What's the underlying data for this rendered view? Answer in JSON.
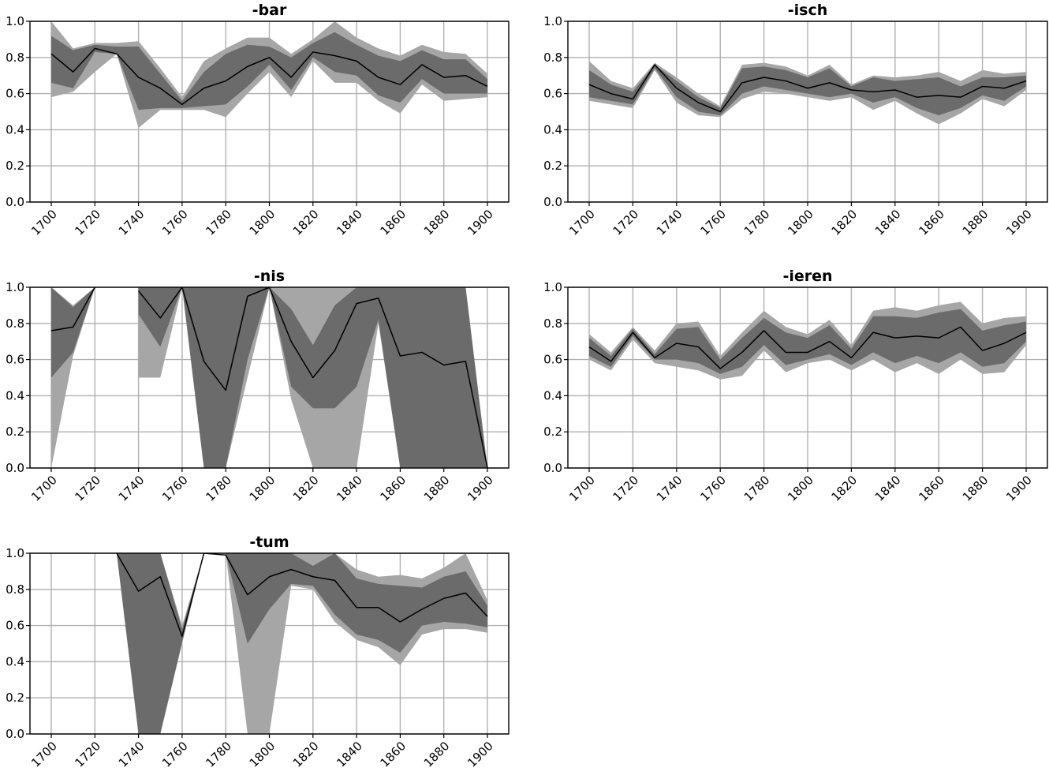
{
  "colors": {
    "outer_band": "#a6a6a6",
    "inner_band": "#6b6b6b",
    "mean_line": "#000000",
    "grid": "#b0b0b0"
  },
  "chart_data": [
    {
      "type": "area",
      "title": "-bar",
      "x": [
        1700,
        1710,
        1720,
        1730,
        1740,
        1750,
        1760,
        1770,
        1780,
        1790,
        1800,
        1810,
        1820,
        1830,
        1840,
        1850,
        1860,
        1870,
        1880,
        1890,
        1900
      ],
      "x_ticks": [
        1700,
        1720,
        1740,
        1760,
        1780,
        1800,
        1820,
        1840,
        1860,
        1880,
        1900
      ],
      "ylim": [
        0,
        1.0
      ],
      "y_ticks": [
        "0.0",
        "0.2",
        "0.4",
        "0.6",
        "0.8",
        "1.0"
      ],
      "grid": true,
      "series": [
        {
          "role": "outer-band",
          "lower": [
            0.58,
            0.61,
            0.72,
            0.82,
            0.41,
            0.51,
            0.51,
            0.51,
            0.47,
            0.6,
            0.72,
            0.58,
            0.78,
            0.66,
            0.66,
            0.56,
            0.49,
            0.65,
            0.56,
            0.57,
            0.58
          ],
          "upper": [
            1.0,
            0.85,
            0.88,
            0.88,
            0.89,
            0.74,
            0.58,
            0.78,
            0.85,
            0.91,
            0.91,
            0.82,
            0.9,
            1.0,
            0.91,
            0.85,
            0.81,
            0.87,
            0.83,
            0.82,
            0.71
          ]
        },
        {
          "role": "inner-band",
          "lower": [
            0.66,
            0.63,
            0.83,
            0.82,
            0.51,
            0.52,
            0.52,
            0.53,
            0.54,
            0.64,
            0.76,
            0.62,
            0.8,
            0.72,
            0.7,
            0.59,
            0.55,
            0.68,
            0.6,
            0.6,
            0.6
          ],
          "upper": [
            0.92,
            0.84,
            0.87,
            0.86,
            0.86,
            0.71,
            0.56,
            0.72,
            0.82,
            0.87,
            0.86,
            0.8,
            0.88,
            0.94,
            0.87,
            0.81,
            0.78,
            0.84,
            0.79,
            0.79,
            0.68
          ]
        },
        {
          "role": "mean",
          "values": [
            0.82,
            0.72,
            0.85,
            0.82,
            0.69,
            0.63,
            0.54,
            0.63,
            0.67,
            0.75,
            0.8,
            0.69,
            0.83,
            0.81,
            0.78,
            0.69,
            0.65,
            0.76,
            0.69,
            0.7,
            0.64
          ]
        }
      ]
    },
    {
      "type": "area",
      "title": "-isch",
      "x": [
        1700,
        1710,
        1720,
        1730,
        1740,
        1750,
        1760,
        1770,
        1780,
        1790,
        1800,
        1810,
        1820,
        1830,
        1840,
        1850,
        1860,
        1870,
        1880,
        1890,
        1900
      ],
      "x_ticks": [
        1700,
        1720,
        1740,
        1760,
        1780,
        1800,
        1820,
        1840,
        1860,
        1880,
        1900
      ],
      "ylim": [
        0,
        1.0
      ],
      "y_ticks": [
        "0.0",
        "0.2",
        "0.4",
        "0.6",
        "0.8",
        "1.0"
      ],
      "grid": true,
      "series": [
        {
          "role": "outer-band",
          "lower": [
            0.56,
            0.54,
            0.52,
            0.73,
            0.55,
            0.48,
            0.47,
            0.57,
            0.61,
            0.6,
            0.58,
            0.56,
            0.58,
            0.51,
            0.56,
            0.49,
            0.43,
            0.49,
            0.57,
            0.53,
            0.62
          ],
          "upper": [
            0.78,
            0.67,
            0.63,
            0.77,
            0.69,
            0.6,
            0.53,
            0.76,
            0.77,
            0.75,
            0.7,
            0.76,
            0.65,
            0.7,
            0.69,
            0.7,
            0.72,
            0.67,
            0.73,
            0.71,
            0.72
          ]
        },
        {
          "role": "inner-band",
          "lower": [
            0.58,
            0.56,
            0.54,
            0.74,
            0.58,
            0.5,
            0.48,
            0.6,
            0.64,
            0.62,
            0.6,
            0.58,
            0.6,
            0.55,
            0.58,
            0.52,
            0.48,
            0.52,
            0.59,
            0.56,
            0.64
          ],
          "upper": [
            0.73,
            0.65,
            0.61,
            0.76,
            0.67,
            0.58,
            0.52,
            0.74,
            0.75,
            0.73,
            0.69,
            0.74,
            0.64,
            0.69,
            0.67,
            0.68,
            0.69,
            0.64,
            0.69,
            0.69,
            0.7
          ]
        },
        {
          "role": "mean",
          "values": [
            0.65,
            0.6,
            0.57,
            0.76,
            0.63,
            0.55,
            0.5,
            0.66,
            0.69,
            0.67,
            0.63,
            0.66,
            0.62,
            0.61,
            0.62,
            0.58,
            0.59,
            0.58,
            0.64,
            0.63,
            0.67
          ]
        }
      ]
    },
    {
      "type": "area",
      "title": "-nis",
      "x": [
        1700,
        1710,
        1720,
        1730,
        1740,
        1750,
        1760,
        1770,
        1780,
        1790,
        1800,
        1810,
        1820,
        1830,
        1840,
        1850,
        1860,
        1870,
        1880,
        1890,
        1900
      ],
      "x_ticks": [
        1700,
        1720,
        1740,
        1760,
        1780,
        1800,
        1820,
        1840,
        1860,
        1880,
        1900
      ],
      "ylim": [
        0,
        1.0
      ],
      "y_ticks": [
        "0.0",
        "0.2",
        "0.4",
        "0.6",
        "0.8",
        "1.0"
      ],
      "grid": true,
      "series": [
        {
          "role": "outer-band",
          "lower": [
            0.0,
            0.62,
            1.0,
            null,
            0.5,
            0.5,
            1.0,
            0.0,
            0.0,
            0.5,
            1.0,
            0.38,
            0.0,
            0.0,
            0.0,
            0.8,
            0.0,
            0.0,
            0.0,
            0.0,
            0.0
          ],
          "upper": [
            1.0,
            0.9,
            1.0,
            null,
            1.0,
            1.0,
            1.0,
            1.0,
            1.0,
            1.0,
            1.0,
            1.0,
            1.0,
            1.0,
            1.0,
            1.0,
            1.0,
            1.0,
            1.0,
            1.0,
            0.0
          ]
        },
        {
          "role": "inner-band",
          "lower": [
            0.5,
            0.64,
            1.0,
            null,
            0.85,
            0.67,
            1.0,
            0.0,
            0.0,
            0.6,
            1.0,
            0.45,
            0.33,
            0.33,
            0.45,
            0.82,
            0.0,
            0.0,
            0.0,
            0.0,
            0.0
          ],
          "upper": [
            1.0,
            0.89,
            1.0,
            null,
            1.0,
            1.0,
            1.0,
            1.0,
            1.0,
            1.0,
            1.0,
            0.88,
            0.68,
            0.9,
            1.0,
            1.0,
            1.0,
            1.0,
            1.0,
            1.0,
            0.0
          ]
        },
        {
          "role": "mean",
          "values": [
            0.76,
            0.78,
            1.0,
            null,
            0.98,
            0.83,
            1.0,
            0.59,
            0.43,
            0.95,
            1.0,
            0.7,
            0.5,
            0.65,
            0.91,
            0.94,
            0.62,
            0.64,
            0.57,
            0.59,
            0.0
          ]
        }
      ]
    },
    {
      "type": "area",
      "title": "-ieren",
      "x": [
        1700,
        1710,
        1720,
        1730,
        1740,
        1750,
        1760,
        1770,
        1780,
        1790,
        1800,
        1810,
        1820,
        1830,
        1840,
        1850,
        1860,
        1870,
        1880,
        1890,
        1900
      ],
      "x_ticks": [
        1700,
        1720,
        1740,
        1760,
        1780,
        1800,
        1820,
        1840,
        1860,
        1880,
        1900
      ],
      "ylim": [
        0,
        1.0
      ],
      "y_ticks": [
        "0.0",
        "0.2",
        "0.4",
        "0.6",
        "0.8",
        "1.0"
      ],
      "grid": true,
      "series": [
        {
          "role": "outer-band",
          "lower": [
            0.6,
            0.54,
            0.71,
            0.58,
            0.56,
            0.54,
            0.49,
            0.51,
            0.65,
            0.53,
            0.58,
            0.6,
            0.54,
            0.6,
            0.53,
            0.58,
            0.52,
            0.6,
            0.52,
            0.53,
            0.68
          ],
          "upper": [
            0.74,
            0.64,
            0.78,
            0.65,
            0.8,
            0.81,
            0.62,
            0.75,
            0.87,
            0.78,
            0.74,
            0.82,
            0.68,
            0.87,
            0.89,
            0.87,
            0.9,
            0.92,
            0.8,
            0.83,
            0.84
          ]
        },
        {
          "role": "inner-band",
          "lower": [
            0.62,
            0.56,
            0.73,
            0.6,
            0.6,
            0.58,
            0.52,
            0.56,
            0.68,
            0.57,
            0.6,
            0.63,
            0.57,
            0.64,
            0.58,
            0.62,
            0.58,
            0.64,
            0.56,
            0.58,
            0.7
          ],
          "upper": [
            0.72,
            0.62,
            0.77,
            0.63,
            0.77,
            0.78,
            0.6,
            0.72,
            0.83,
            0.75,
            0.72,
            0.79,
            0.66,
            0.84,
            0.84,
            0.83,
            0.86,
            0.88,
            0.76,
            0.79,
            0.81
          ]
        },
        {
          "role": "mean",
          "values": [
            0.67,
            0.59,
            0.75,
            0.61,
            0.69,
            0.67,
            0.55,
            0.64,
            0.76,
            0.64,
            0.64,
            0.7,
            0.61,
            0.75,
            0.72,
            0.73,
            0.72,
            0.78,
            0.65,
            0.69,
            0.75
          ]
        }
      ]
    },
    {
      "type": "area",
      "title": "-tum",
      "x": [
        1700,
        1710,
        1720,
        1730,
        1740,
        1750,
        1760,
        1770,
        1780,
        1790,
        1800,
        1810,
        1820,
        1830,
        1840,
        1850,
        1860,
        1870,
        1880,
        1890,
        1900
      ],
      "x_ticks": [
        1700,
        1720,
        1740,
        1760,
        1780,
        1800,
        1820,
        1840,
        1860,
        1880,
        1900
      ],
      "ylim": [
        0,
        1.0
      ],
      "y_ticks": [
        "0.0",
        "0.2",
        "0.4",
        "0.6",
        "0.8",
        "1.0"
      ],
      "grid": true,
      "series": [
        {
          "role": "outer-band",
          "lower": [
            null,
            null,
            null,
            1.0,
            0.0,
            0.0,
            0.5,
            1.0,
            1.0,
            0.0,
            0.0,
            0.82,
            0.8,
            0.62,
            0.52,
            0.48,
            0.38,
            0.55,
            0.58,
            0.58,
            0.56
          ],
          "upper": [
            null,
            null,
            null,
            1.0,
            1.0,
            1.0,
            0.6,
            1.0,
            1.0,
            1.0,
            1.0,
            1.0,
            1.0,
            1.0,
            0.91,
            0.87,
            0.88,
            0.86,
            0.92,
            1.0,
            0.74
          ]
        },
        {
          "role": "inner-band",
          "lower": [
            null,
            null,
            null,
            1.0,
            0.0,
            0.0,
            0.51,
            1.0,
            1.0,
            0.5,
            0.69,
            0.83,
            0.82,
            0.66,
            0.55,
            0.52,
            0.45,
            0.6,
            0.62,
            0.61,
            0.59
          ],
          "upper": [
            null,
            null,
            null,
            1.0,
            1.0,
            1.0,
            0.58,
            1.0,
            1.0,
            1.0,
            1.0,
            1.0,
            0.93,
            1.0,
            0.86,
            0.83,
            0.82,
            0.81,
            0.87,
            0.9,
            0.71
          ]
        },
        {
          "role": "mean",
          "values": [
            null,
            null,
            null,
            1.0,
            0.79,
            0.87,
            0.54,
            1.0,
            0.99,
            0.77,
            0.87,
            0.91,
            0.87,
            0.85,
            0.7,
            0.7,
            0.62,
            0.69,
            0.75,
            0.78,
            0.65
          ]
        }
      ]
    }
  ]
}
